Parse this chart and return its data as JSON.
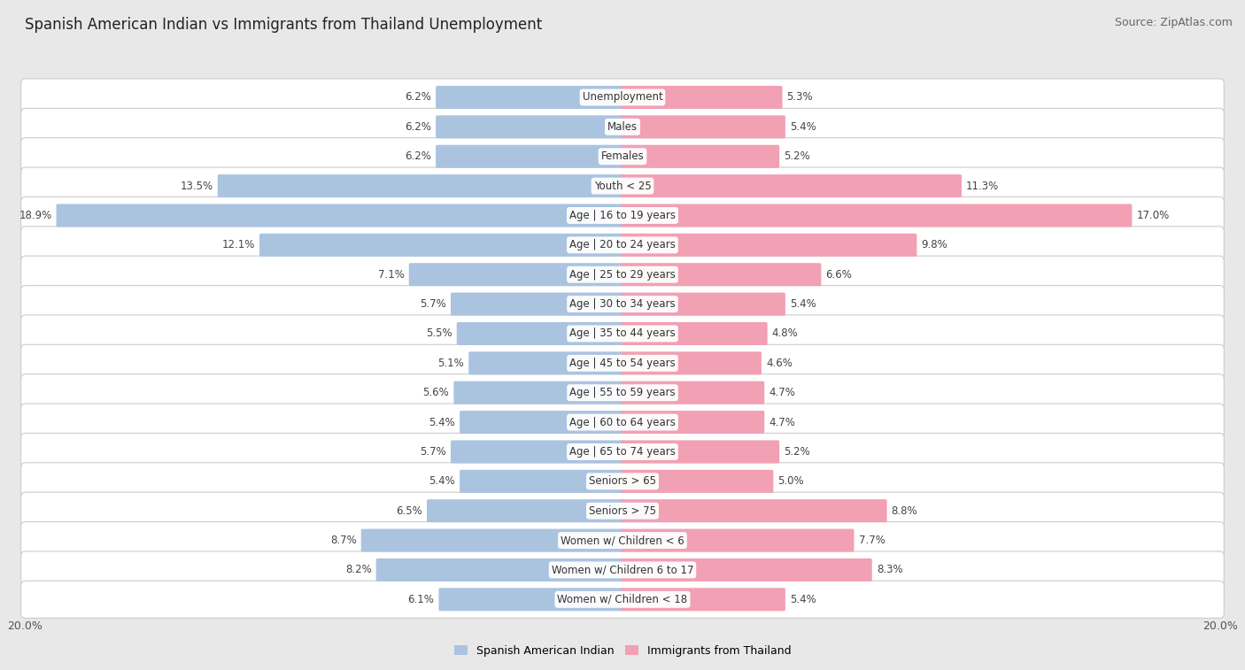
{
  "title": "Spanish American Indian vs Immigrants from Thailand Unemployment",
  "source": "Source: ZipAtlas.com",
  "categories": [
    "Unemployment",
    "Males",
    "Females",
    "Youth < 25",
    "Age | 16 to 19 years",
    "Age | 20 to 24 years",
    "Age | 25 to 29 years",
    "Age | 30 to 34 years",
    "Age | 35 to 44 years",
    "Age | 45 to 54 years",
    "Age | 55 to 59 years",
    "Age | 60 to 64 years",
    "Age | 65 to 74 years",
    "Seniors > 65",
    "Seniors > 75",
    "Women w/ Children < 6",
    "Women w/ Children 6 to 17",
    "Women w/ Children < 18"
  ],
  "left_values": [
    6.2,
    6.2,
    6.2,
    13.5,
    18.9,
    12.1,
    7.1,
    5.7,
    5.5,
    5.1,
    5.6,
    5.4,
    5.7,
    5.4,
    6.5,
    8.7,
    8.2,
    6.1
  ],
  "right_values": [
    5.3,
    5.4,
    5.2,
    11.3,
    17.0,
    9.8,
    6.6,
    5.4,
    4.8,
    4.6,
    4.7,
    4.7,
    5.2,
    5.0,
    8.8,
    7.7,
    8.3,
    5.4
  ],
  "left_color": "#aac4e0",
  "right_color": "#f2a0b4",
  "left_label": "Spanish American Indian",
  "right_label": "Immigrants from Thailand",
  "max_val": 20.0,
  "bg_color": "#e8e8e8",
  "bar_bg_color": "#ffffff",
  "title_fontsize": 12,
  "source_fontsize": 9,
  "value_fontsize": 8.5,
  "cat_fontsize": 8.5,
  "legend_fontsize": 9
}
